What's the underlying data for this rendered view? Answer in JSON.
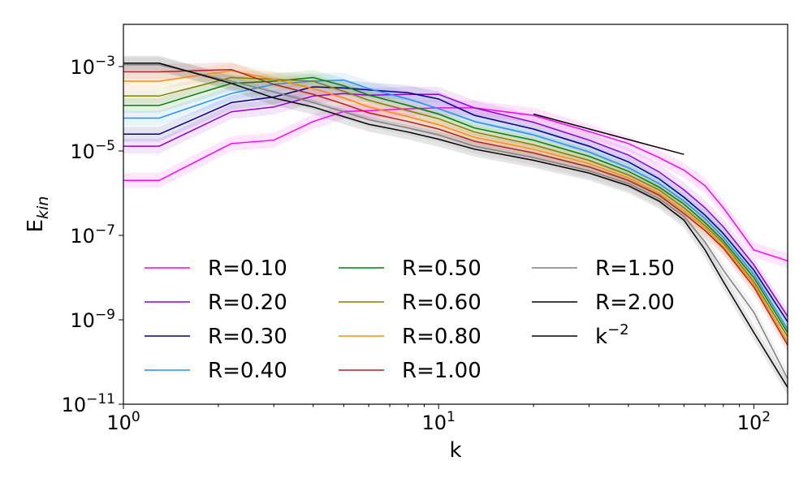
{
  "chart_data": {
    "type": "line",
    "title": "",
    "xlabel": "k",
    "ylabel": "E_kin",
    "xscale": "log",
    "yscale": "log",
    "xlim": [
      1,
      128
    ],
    "ylim": [
      1e-11,
      0.01
    ],
    "x_ticks": [
      {
        "value": 1,
        "base": "10",
        "exp": "0"
      },
      {
        "value": 10,
        "base": "10",
        "exp": "1"
      },
      {
        "value": 100,
        "base": "10",
        "exp": "2"
      }
    ],
    "y_ticks": [
      {
        "value": 0.001,
        "base": "10",
        "exp": "−3"
      },
      {
        "value": 1e-05,
        "base": "10",
        "exp": "−5"
      },
      {
        "value": 1e-07,
        "base": "10",
        "exp": "−7"
      },
      {
        "value": 1e-09,
        "base": "10",
        "exp": "−9"
      },
      {
        "value": 1e-11,
        "base": "10",
        "exp": "−11"
      }
    ],
    "grid": false,
    "legend_position": "lower-left",
    "k_values": [
      1,
      1.3,
      2.2,
      3,
      4,
      5,
      6,
      8,
      10,
      13,
      20,
      30,
      40,
      50,
      60,
      70,
      80,
      100,
      128
    ],
    "series": [
      {
        "name": "R=0.10",
        "color": "#ff00ff",
        "values": [
          2e-06,
          2e-06,
          1.5e-05,
          1.8e-05,
          5e-05,
          8.6e-05,
          9e-05,
          0.0001,
          0.000105,
          0.000105,
          7e-05,
          2.9e-05,
          1.5e-05,
          7e-06,
          3.5e-06,
          1.5e-06,
          4.5e-07,
          4.5e-08,
          2.5e-08
        ]
      },
      {
        "name": "R=0.20",
        "color": "#9400d3",
        "values": [
          1.3e-05,
          1.3e-05,
          8.5e-05,
          0.00011,
          0.0002,
          0.00023,
          0.00021,
          0.00022,
          0.00022,
          0.000105,
          4.8e-05,
          1.8e-05,
          8e-06,
          3.2e-06,
          1.2e-06,
          4.5e-07,
          1.6e-07,
          2e-08,
          1.2e-09
        ]
      },
      {
        "name": "R=0.30",
        "color": "#000080",
        "values": [
          2.5e-05,
          2.5e-05,
          0.00014,
          0.00019,
          0.00033,
          0.00031,
          0.00028,
          0.00024,
          0.00017,
          7e-05,
          3.3e-05,
          1.3e-05,
          5.5e-06,
          2.2e-06,
          8e-07,
          3e-07,
          1.1e-07,
          1.5e-08,
          9e-10
        ]
      },
      {
        "name": "R=0.40",
        "color": "#1e90ff",
        "values": [
          6e-05,
          6e-05,
          0.00023,
          0.00038,
          0.00045,
          0.00048,
          0.0003,
          0.00017,
          0.0001,
          5e-05,
          2.4e-05,
          9.5e-06,
          4e-06,
          1.7e-06,
          6.5e-07,
          2.5e-07,
          9e-08,
          1.2e-08,
          6e-10
        ]
      },
      {
        "name": "R=0.50",
        "color": "#008000",
        "values": [
          0.00012,
          0.00012,
          0.0004,
          0.00045,
          0.00055,
          0.00035,
          0.00021,
          0.00012,
          7.5e-05,
          3.5e-05,
          1.8e-05,
          7.5e-06,
          3.3e-06,
          1.4e-06,
          5.5e-07,
          2e-07,
          7.5e-08,
          1e-08,
          5e-10
        ]
      },
      {
        "name": "R=0.60",
        "color": "#808000",
        "values": [
          0.0002,
          0.0002,
          0.00055,
          0.0005,
          0.00045,
          0.00026,
          0.00016,
          9e-05,
          5.8e-05,
          2.8e-05,
          1.4e-05,
          6e-06,
          2.7e-06,
          1.2e-06,
          4.5e-07,
          1.7e-07,
          6.5e-08,
          8e-09,
          4e-10
        ]
      },
      {
        "name": "R=0.80",
        "color": "#ff8c00",
        "values": [
          0.00045,
          0.00045,
          0.0008,
          0.0005,
          0.0003,
          0.00018,
          0.00011,
          6.5e-05,
          4.2e-05,
          2.1e-05,
          1.1e-05,
          5e-06,
          2.3e-06,
          1e-06,
          3.8e-07,
          1.5e-07,
          5.5e-08,
          7e-09,
          3e-10
        ]
      },
      {
        "name": "R=1.00",
        "color": "#b22222",
        "values": [
          0.00075,
          0.00075,
          0.00085,
          0.00038,
          0.00022,
          0.00013,
          8e-05,
          5e-05,
          3.3e-05,
          1.7e-05,
          9e-06,
          4.2e-06,
          2e-06,
          9e-07,
          3.3e-07,
          1.3e-07,
          5e-08,
          6e-09,
          2.5e-10
        ]
      },
      {
        "name": "R=1.50",
        "color": "#808080",
        "values": [
          0.0011,
          0.0011,
          0.00045,
          0.00025,
          0.00014,
          8.5e-05,
          5.5e-05,
          3.5e-05,
          2.4e-05,
          1.3e-05,
          7e-06,
          3.4e-06,
          1.7e-06,
          7.5e-07,
          2.8e-07,
          7e-08,
          1.5e-08,
          1.5e-09,
          4e-11
        ]
      },
      {
        "name": "R=2.00",
        "color": "#000000",
        "values": [
          0.0012,
          0.0012,
          0.0004,
          0.00018,
          0.00011,
          6.5e-05,
          4.3e-05,
          2.8e-05,
          1.9e-05,
          1.1e-05,
          6e-06,
          3e-06,
          1.5e-06,
          6.5e-07,
          2.3e-07,
          4.5e-08,
          8e-09,
          5e-10,
          2.5e-11
        ]
      }
    ],
    "reference_line": {
      "name": "k^{-2}",
      "label_base": "k",
      "label_exp": "−2",
      "color": "#000000",
      "k_start": 20,
      "k_end": 60,
      "y_start": 7.5e-05,
      "y_end": 8.3e-06
    }
  }
}
